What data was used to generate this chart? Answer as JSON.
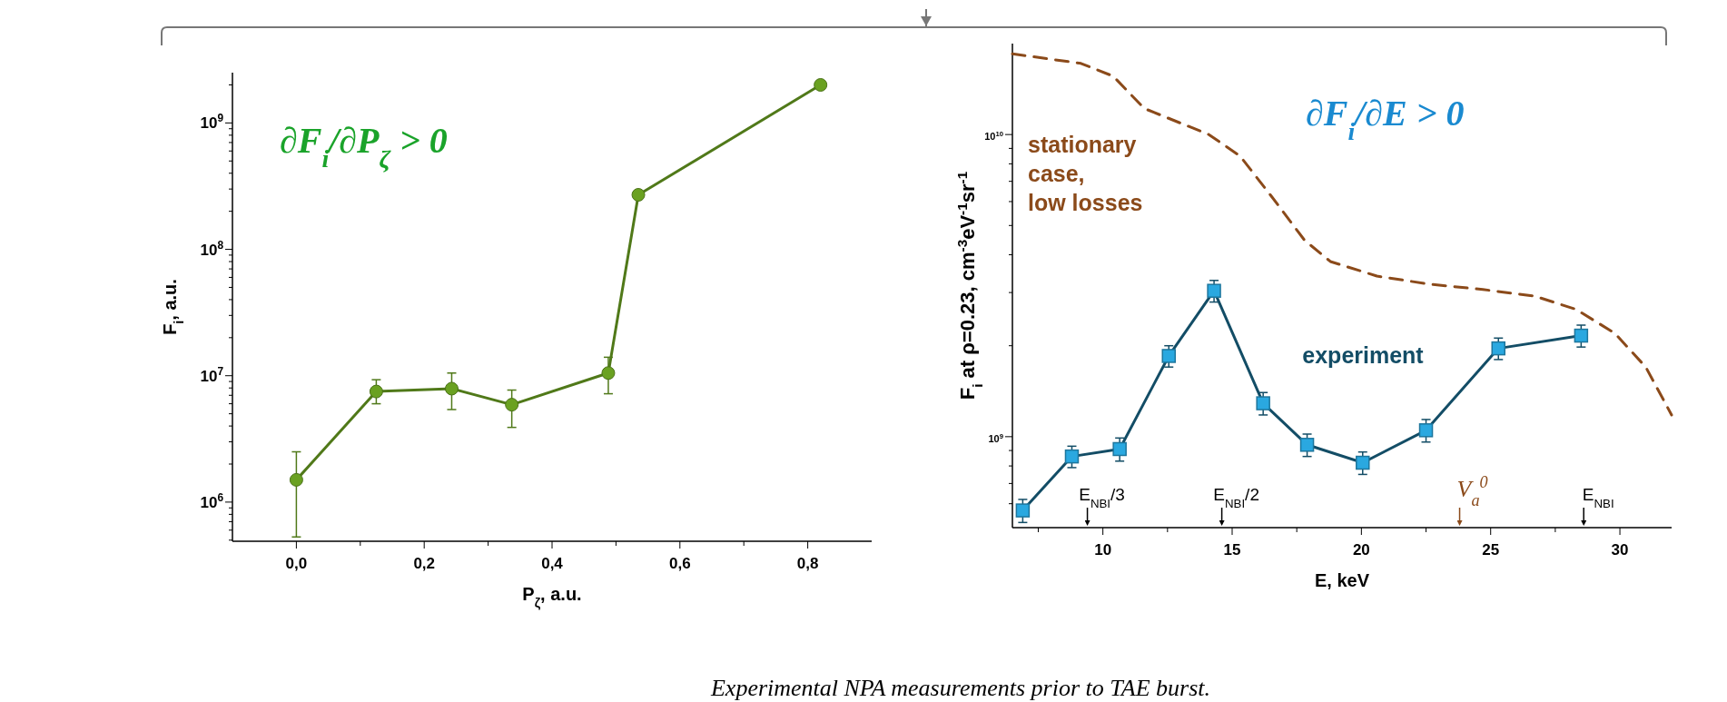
{
  "chart_data": [
    {
      "type": "line",
      "xlabel": "P$_{ζ}$, a.u.",
      "ylabel": "F$_{i}$, a.u.",
      "log": "y",
      "xlim": [
        -0.1,
        0.9
      ],
      "ylim": [
        490000,
        2500000000
      ],
      "xticks": [
        {
          "value": 0,
          "label": "0,0"
        },
        {
          "value": 0.1,
          "label": null
        },
        {
          "value": 0.2,
          "label": "0,2"
        },
        {
          "value": 0.3,
          "label": null
        },
        {
          "value": 0.4,
          "label": "0,4"
        },
        {
          "value": 0.5,
          "label": null
        },
        {
          "value": 0.6,
          "label": "0,6"
        },
        {
          "value": 0.7,
          "label": null
        },
        {
          "value": 0.8,
          "label": "0,8"
        }
      ],
      "yticks": [
        {
          "value": 1000000,
          "label": "10$^{6}$"
        },
        {
          "value": 10000000,
          "label": "10$^{7}$"
        },
        {
          "value": 100000000,
          "label": "10$^{8}$"
        },
        {
          "value": 1000000000,
          "label": "10$^{9}$"
        }
      ],
      "grid": false,
      "series": [
        {
          "color": "#6aa121",
          "marker": "circle",
          "line_style": "solid",
          "x": [
            0,
            0.125,
            0.243,
            0.337,
            0.488,
            0.535,
            0.82
          ],
          "values": [
            1500000,
            7500000,
            7900000,
            5900000,
            10500000,
            270000000,
            2000000000
          ],
          "errors": [
            [
              530000,
              2500000
            ],
            [
              6000000,
              9300000
            ],
            [
              5400000,
              10500000
            ],
            [
              3900000,
              7700000
            ],
            [
              7200000,
              14000000
            ],
            null,
            null
          ]
        }
      ],
      "annotations": [
        "∂F$_{i}$/∂P$_{ζ}$ > 0"
      ]
    },
    {
      "type": "line",
      "xlabel": "E, keV",
      "ylabel": "F$_{i}$ at ρ=0.23, cm$^{-3}$eV$^{-1}$sr$^{-1}$",
      "log": "y",
      "xlim": [
        6.5,
        32
      ],
      "ylim": [
        500000000,
        20000000000
      ],
      "xticks": [
        {
          "value": 7.5,
          "label": null
        },
        10,
        {
          "value": 12.5,
          "label": null
        },
        15,
        {
          "value": 17.5,
          "label": null
        },
        20,
        {
          "value": 22.5,
          "label": null
        },
        25,
        {
          "value": 27.5,
          "label": null
        },
        30
      ],
      "yticks": [
        {
          "value": 1000000000,
          "label": "10$^{9}$"
        },
        {
          "value": 10000000000,
          "label": "10$^{10}$"
        }
      ],
      "grid": false,
      "series": [
        {
          "name": "stationary case, low losses",
          "color": "#8b4a1a",
          "marker": "none",
          "line_style": "dashed",
          "x": [
            6.5,
            9.15,
            10.4,
            11.6,
            14.1,
            15.3,
            16.55,
            17.8,
            18.8,
            20.6,
            22.6,
            24.7,
            26.7,
            28.3,
            29.8,
            31.0,
            32
          ],
          "values": [
            18500000000,
            17200000000,
            15600000000,
            12200000000,
            10000000000,
            8500000000,
            6200000000,
            4470000000,
            3800000000,
            3400000000,
            3200000000,
            3070000000,
            2920000000,
            2640000000,
            2200000000,
            1700000000,
            1180000000
          ]
        },
        {
          "name": "experiment",
          "color": "#2aa8e0",
          "marker": "square",
          "line_style": "solid",
          "x": [
            6.9,
            8.8,
            10.65,
            12.55,
            14.3,
            16.2,
            17.9,
            20.05,
            22.5,
            25.3,
            28.5
          ],
          "values": [
            570000000,
            860000000,
            910000000,
            1850000000,
            3040000000,
            1290000000,
            940000000,
            820000000,
            1050000000,
            1960000000,
            2160000000
          ],
          "errors": [
            50000000,
            70000000,
            80000000,
            150000000,
            250000000,
            110000000,
            80000000,
            70000000,
            90000000,
            160000000,
            180000000
          ]
        }
      ],
      "ref_lines": [
        {
          "axis": "x",
          "value": 9.4,
          "label": "E$_{NBI}$/3",
          "color": "#000000"
        },
        {
          "axis": "x",
          "value": 14.6,
          "label": "E$_{NBI}$/2",
          "color": "#000000"
        },
        {
          "axis": "x",
          "value": 23.8,
          "label": "V$_{a}$$^{0}$",
          "color": "#8b4a1a"
        },
        {
          "axis": "x",
          "value": 28.6,
          "label": "E$_{NBI}$",
          "color": "#000000"
        }
      ],
      "annotations": [
        "∂F$_{i}$/∂E > 0",
        "Experimental NPA measurements prior to TAE burst."
      ]
    }
  ]
}
